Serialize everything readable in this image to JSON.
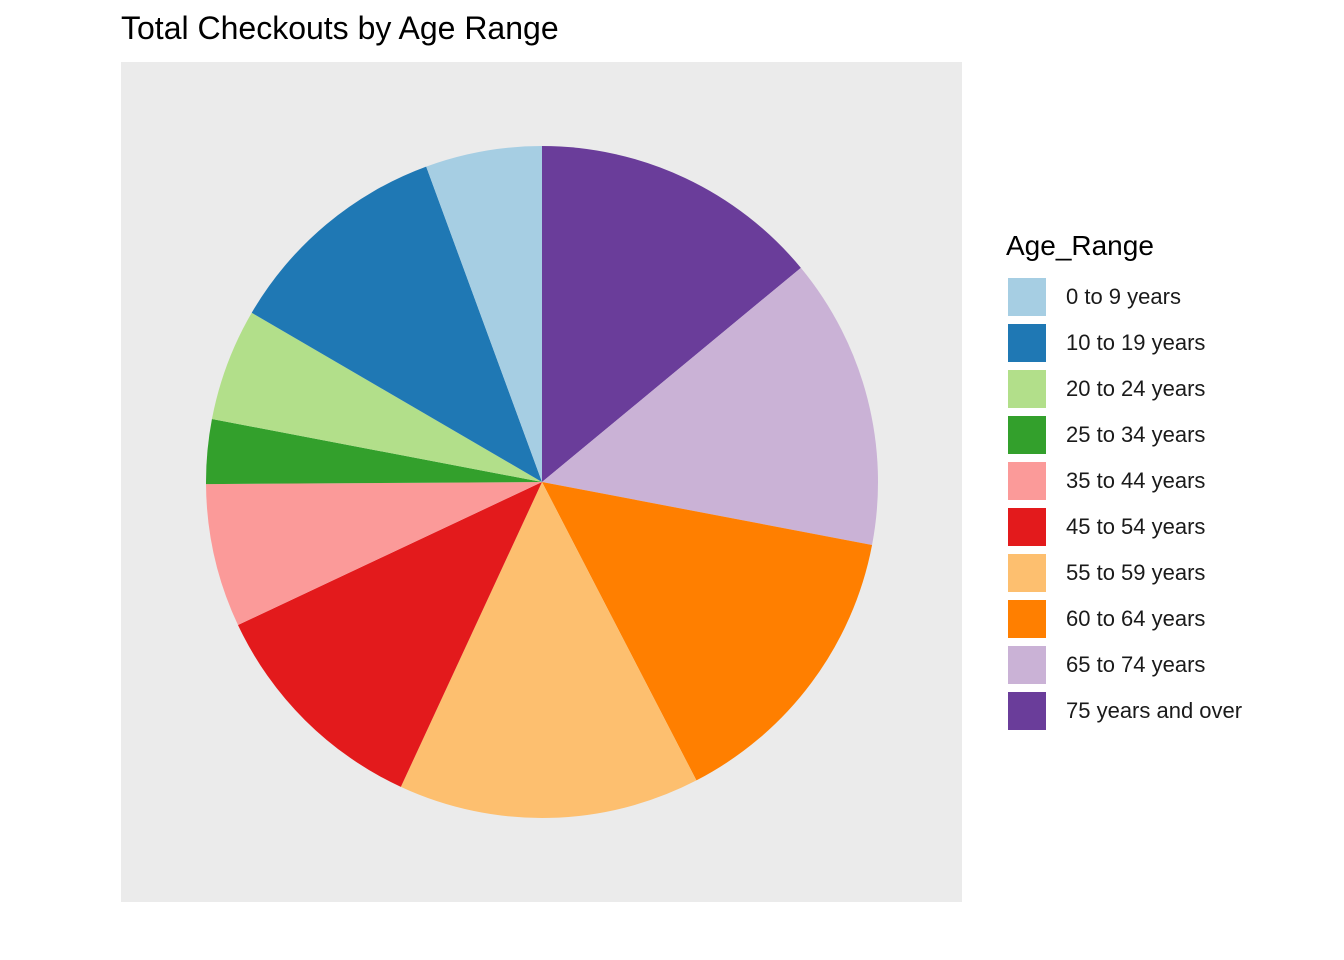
{
  "chart_data": {
    "type": "pie",
    "title": "Total Checkouts by Age Range",
    "legend_title": "Age_Range",
    "legend_position": "right",
    "grid": false,
    "slices": [
      {
        "label": "0 to 9 years",
        "value": 5.6,
        "color": "#a6cee3"
      },
      {
        "label": "10 to 19 years",
        "value": 11.0,
        "color": "#1f78b4"
      },
      {
        "label": "20 to 24 years",
        "value": 5.4,
        "color": "#b2df8a"
      },
      {
        "label": "25 to 34 years",
        "value": 3.1,
        "color": "#33a02c"
      },
      {
        "label": "35 to 44 years",
        "value": 6.9,
        "color": "#fb9a99"
      },
      {
        "label": "45 to 54 years",
        "value": 11.1,
        "color": "#e31a1c"
      },
      {
        "label": "55 to 59 years",
        "value": 14.5,
        "color": "#fdbf6f"
      },
      {
        "label": "60 to 64 years",
        "value": 14.4,
        "color": "#ff7f00"
      },
      {
        "label": "65 to 74 years",
        "value": 14.0,
        "color": "#cab2d6"
      },
      {
        "label": "75 years and over",
        "value": 14.0,
        "color": "#6a3d9a"
      }
    ]
  }
}
